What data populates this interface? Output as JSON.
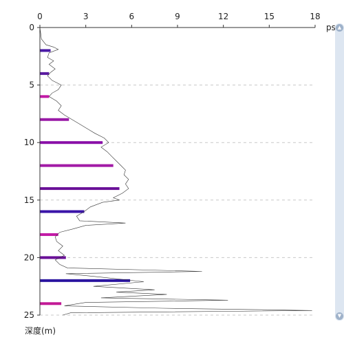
{
  "chart_data": {
    "type": "bar",
    "xlim": [
      0,
      18
    ],
    "ylim": [
      0,
      25
    ],
    "x_ticks": [
      "0",
      "3",
      "6",
      "9",
      "12",
      "15",
      "18"
    ],
    "y_ticks": [
      "0",
      "5",
      "10",
      "15",
      "20",
      "25"
    ],
    "x_unit_label": "ps(",
    "ylabel": "深度(m)",
    "grid": "dashed horizontal",
    "bars": [
      {
        "depth": 2,
        "value": 0.7,
        "color": "#4a1aa6"
      },
      {
        "depth": 4,
        "value": 0.6,
        "color": "#5a1aa0"
      },
      {
        "depth": 6,
        "value": 0.6,
        "color": "#c21aa6"
      },
      {
        "depth": 8,
        "value": 1.9,
        "color": "#9a1aa6"
      },
      {
        "depth": 10,
        "value": 4.1,
        "color": "#8a10a8"
      },
      {
        "depth": 12,
        "value": 4.8,
        "color": "#a21aa6"
      },
      {
        "depth": 14,
        "value": 5.2,
        "color": "#6a1098"
      },
      {
        "depth": 16,
        "value": 2.9,
        "color": "#3a14a8"
      },
      {
        "depth": 18,
        "value": 1.2,
        "color": "#c21aa6"
      },
      {
        "depth": 20,
        "value": 1.7,
        "color": "#6a1098"
      },
      {
        "depth": 22,
        "value": 5.9,
        "color": "#2a14a0"
      },
      {
        "depth": 24,
        "value": 1.4,
        "color": "#c21a96"
      }
    ],
    "trace": {
      "color": "#333333",
      "points": [
        [
          0,
          0.0
        ],
        [
          0.1,
          1.0
        ],
        [
          0.4,
          1.5
        ],
        [
          0.9,
          1.7
        ],
        [
          1.2,
          1.9
        ],
        [
          0.6,
          2.2
        ],
        [
          0.5,
          2.6
        ],
        [
          0.9,
          2.9
        ],
        [
          0.6,
          3.2
        ],
        [
          1.0,
          3.6
        ],
        [
          0.7,
          3.9
        ],
        [
          0.5,
          4.2
        ],
        [
          0.8,
          4.6
        ],
        [
          1.4,
          5.0
        ],
        [
          1.2,
          5.4
        ],
        [
          0.8,
          5.7
        ],
        [
          0.6,
          6.0
        ],
        [
          1.1,
          6.4
        ],
        [
          1.4,
          6.8
        ],
        [
          1.2,
          7.2
        ],
        [
          1.6,
          7.6
        ],
        [
          2.1,
          8.0
        ],
        [
          2.6,
          8.4
        ],
        [
          3.1,
          8.8
        ],
        [
          3.6,
          9.2
        ],
        [
          4.2,
          9.6
        ],
        [
          4.5,
          10.0
        ],
        [
          4.0,
          10.4
        ],
        [
          4.4,
          10.8
        ],
        [
          4.7,
          11.2
        ],
        [
          5.0,
          11.6
        ],
        [
          5.3,
          12.0
        ],
        [
          5.6,
          12.4
        ],
        [
          5.5,
          12.8
        ],
        [
          5.8,
          13.2
        ],
        [
          5.6,
          13.6
        ],
        [
          5.8,
          14.0
        ],
        [
          5.4,
          14.4
        ],
        [
          4.8,
          14.8
        ],
        [
          5.2,
          15.0
        ],
        [
          4.1,
          15.2
        ],
        [
          3.3,
          15.6
        ],
        [
          2.9,
          16.0
        ],
        [
          2.4,
          16.4
        ],
        [
          2.6,
          16.8
        ],
        [
          5.6,
          17.0
        ],
        [
          3.0,
          17.2
        ],
        [
          2.2,
          17.5
        ],
        [
          1.3,
          17.8
        ],
        [
          1.0,
          18.2
        ],
        [
          1.1,
          18.6
        ],
        [
          1.5,
          19.0
        ],
        [
          1.2,
          19.4
        ],
        [
          1.6,
          19.8
        ],
        [
          1.0,
          20.2
        ],
        [
          1.3,
          20.6
        ],
        [
          1.8,
          20.9
        ],
        [
          10.6,
          21.2
        ],
        [
          1.7,
          21.4
        ],
        [
          4.0,
          21.7
        ],
        [
          6.8,
          22.1
        ],
        [
          3.5,
          22.5
        ],
        [
          7.5,
          22.8
        ],
        [
          5.0,
          23.0
        ],
        [
          8.3,
          23.2
        ],
        [
          4.0,
          23.5
        ],
        [
          12.3,
          23.7
        ],
        [
          3.0,
          23.9
        ],
        [
          1.6,
          24.2
        ],
        [
          8.0,
          24.4
        ],
        [
          17.8,
          24.6
        ],
        [
          2.0,
          24.8
        ],
        [
          1.5,
          25.0
        ]
      ]
    }
  }
}
